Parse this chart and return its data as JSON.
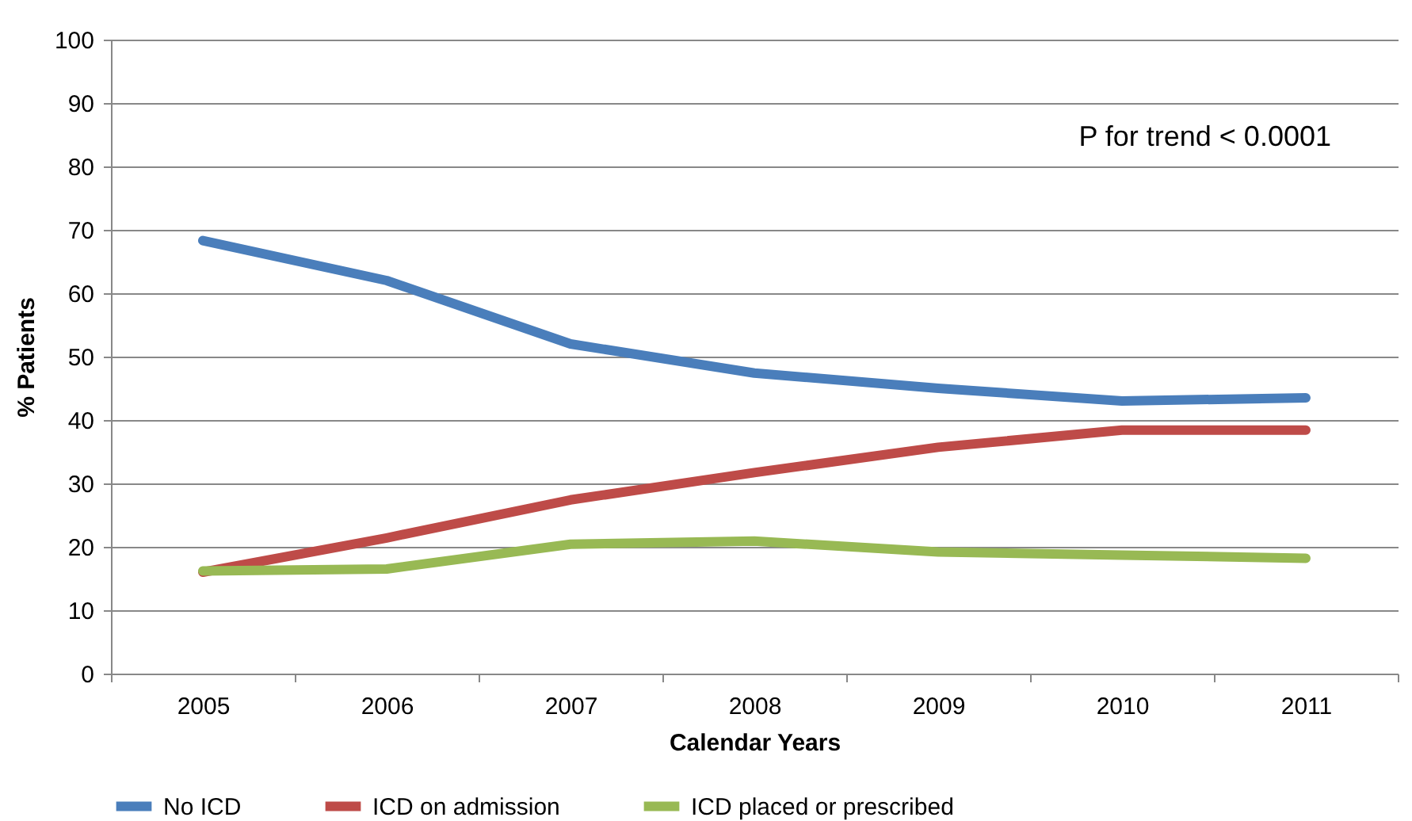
{
  "chart_data": {
    "type": "line",
    "xlabel": "Calendar Years",
    "ylabel": "% Patients",
    "categories": [
      "2005",
      "2006",
      "2007",
      "2008",
      "2009",
      "2010",
      "2011"
    ],
    "series": [
      {
        "name": "No ICD",
        "color": "#4a7ebb",
        "values": [
          68.3,
          62,
          52,
          47.4,
          45,
          43,
          43.5
        ]
      },
      {
        "name": "ICD on admission",
        "color": "#be4b48",
        "values": [
          16,
          21.4,
          27.4,
          31.7,
          35.7,
          38.4,
          38.4
        ]
      },
      {
        "name": "ICD placed or prescribed",
        "color": "#98b954",
        "values": [
          16.2,
          16.5,
          20.4,
          20.9,
          19.2,
          18.7,
          18.2
        ]
      }
    ],
    "ylim": [
      0,
      100
    ],
    "yticks": [
      0,
      10,
      20,
      30,
      40,
      50,
      60,
      70,
      80,
      90,
      100
    ],
    "grid": "y",
    "legend": "bottom",
    "marker": "none",
    "line_style": "solid",
    "annotations": [
      "P for trend < 0.0001"
    ]
  }
}
